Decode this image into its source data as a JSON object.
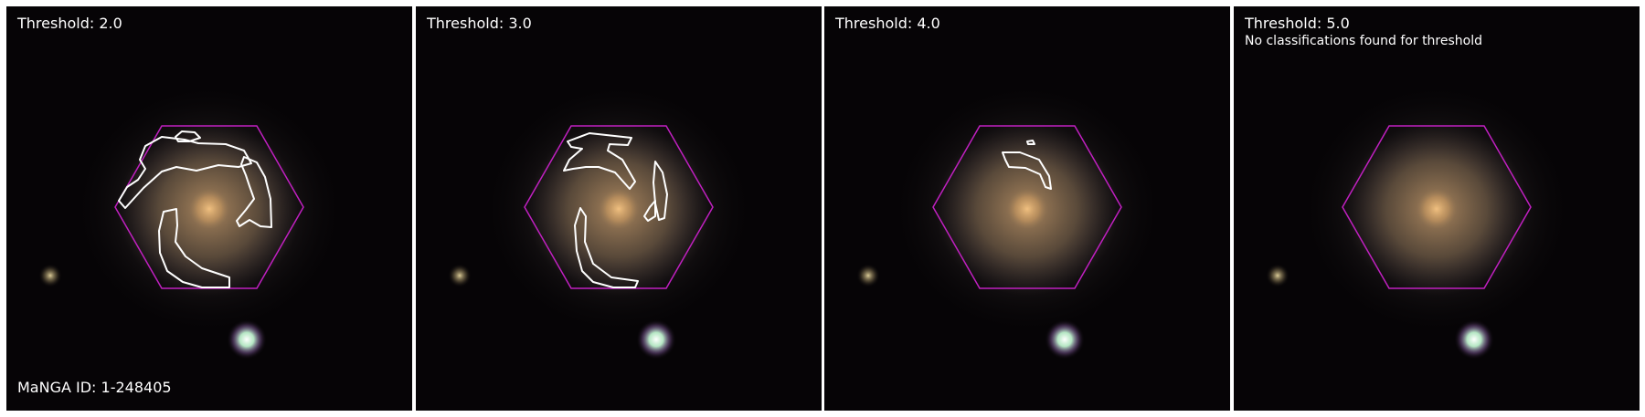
{
  "panels": [
    {
      "threshold_label": "Threshold: 2.0",
      "note": "",
      "footer": "MaNGA ID: 1-248405",
      "region_count": 4
    },
    {
      "threshold_label": "Threshold: 3.0",
      "note": "",
      "footer": "",
      "region_count": 4
    },
    {
      "threshold_label": "Threshold: 4.0",
      "note": "",
      "footer": "",
      "region_count": 2
    },
    {
      "threshold_label": "Threshold: 5.0",
      "note": "No classifications found for threshold",
      "footer": "",
      "region_count": 0
    }
  ],
  "colors": {
    "background_sky": "#060406",
    "galaxy_core": "#c7a070",
    "hexagon_outline": "#c020c0",
    "classification_contour": "#ffffff",
    "star": "#dfffef"
  }
}
